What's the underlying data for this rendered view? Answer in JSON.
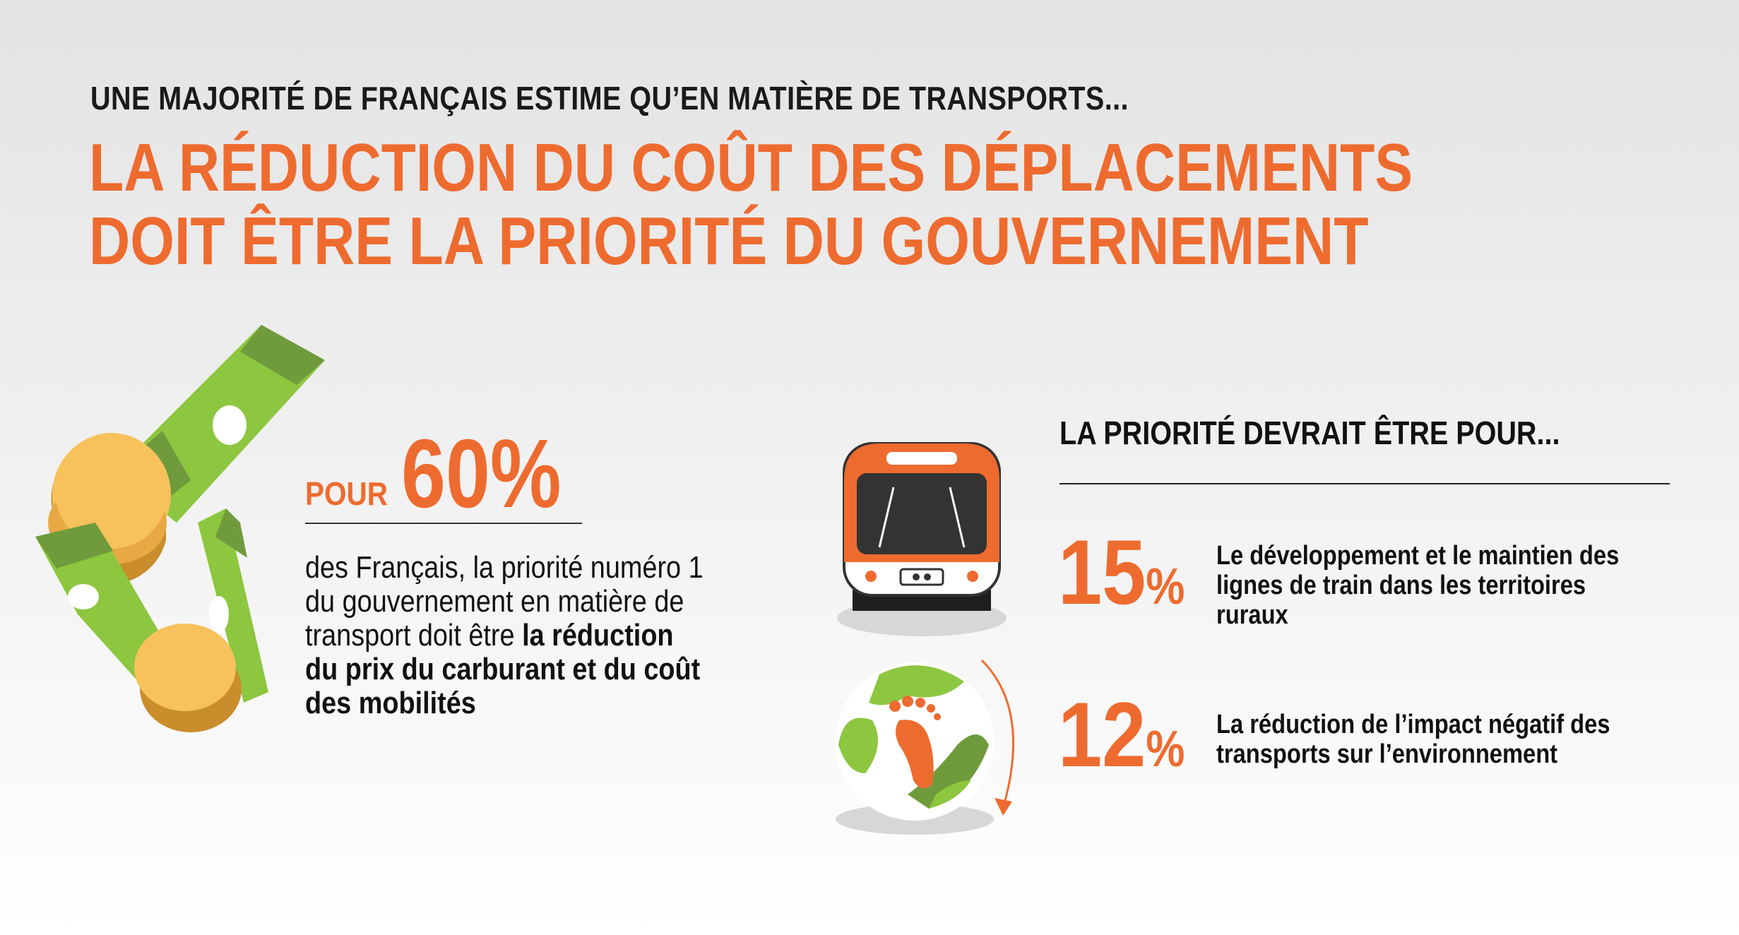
{
  "header": {
    "kicker": "UNE MAJORITÉ DE FRANÇAIS ESTIME QU’EN MATIÈRE DE TRANSPORTS...",
    "headline_line1": "LA RÉDUCTION DU COÛT DES DÉPLACEMENTS",
    "headline_line2": "DOIT ÊTRE LA PRIORITÉ DU GOUVERNEMENT"
  },
  "main_stat": {
    "prefix": "POUR",
    "value": "60%",
    "text_plain": "des Français, la priorité numéro 1 du gouvernement en matière de transport doit être ",
    "text_bold": "la réduction du prix du carburant et du coût des mobilités"
  },
  "priorities": {
    "title": "LA PRIORITÉ DEVRAIT ÊTRE POUR...",
    "items": [
      {
        "number": "15",
        "unit": "%",
        "label": "Le développement et le maintien des lignes de train dans les territoires ruraux",
        "icon": "train-icon"
      },
      {
        "number": "12",
        "unit": "%",
        "label": "La réduction de l’impact négatif des transports sur l’environnement",
        "icon": "footprint-globe-icon"
      }
    ]
  },
  "colors": {
    "accent": "#ee6b2f",
    "text": "#111111",
    "green_light": "#8dc63f",
    "green_dark": "#6f9b3c",
    "coin": "#f7c15b"
  }
}
